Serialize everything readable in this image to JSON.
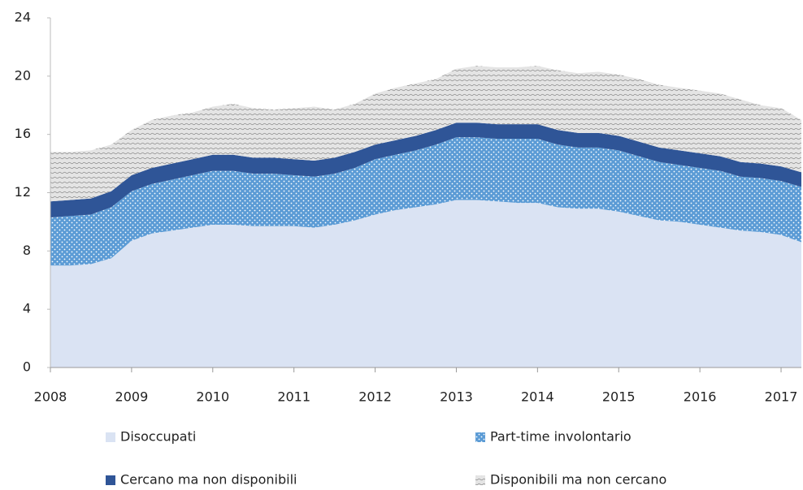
{
  "chart_data": {
    "type": "stacked-area",
    "categories": [
      "2008",
      null,
      null,
      null,
      "2009",
      null,
      null,
      null,
      "2010",
      null,
      null,
      null,
      "2011",
      null,
      null,
      null,
      "2012",
      null,
      null,
      null,
      "2013",
      null,
      null,
      null,
      "2014",
      null,
      null,
      null,
      "2015",
      null,
      null,
      null,
      "2016",
      null,
      null,
      null,
      "2017",
      null
    ],
    "series": [
      {
        "name": "Disoccupati",
        "color": "#dae3f3",
        "values": [
          7.0,
          7.0,
          7.1,
          7.5,
          8.7,
          9.2,
          9.4,
          9.6,
          9.8,
          9.8,
          9.7,
          9.7,
          9.7,
          9.6,
          9.8,
          10.1,
          10.5,
          10.8,
          11.0,
          11.2,
          11.5,
          11.5,
          11.4,
          11.3,
          11.3,
          11.0,
          10.9,
          10.9,
          10.7,
          10.4,
          10.1,
          10.0,
          9.8,
          9.6,
          9.4,
          9.3,
          9.1,
          8.6
        ]
      },
      {
        "name": "Part-time involontario",
        "color": "#5b9bd5",
        "values": [
          3.3,
          3.4,
          3.4,
          3.5,
          3.4,
          3.4,
          3.5,
          3.6,
          3.7,
          3.7,
          3.6,
          3.6,
          3.5,
          3.5,
          3.5,
          3.6,
          3.8,
          3.8,
          3.9,
          4.1,
          4.3,
          4.3,
          4.3,
          4.4,
          4.4,
          4.3,
          4.2,
          4.2,
          4.2,
          4.1,
          4.0,
          3.9,
          3.9,
          3.9,
          3.7,
          3.7,
          3.7,
          3.8
        ]
      },
      {
        "name": "Cercano ma non disponibili",
        "color": "#2f5597",
        "values": [
          1.1,
          1.1,
          1.1,
          1.1,
          1.1,
          1.1,
          1.1,
          1.1,
          1.1,
          1.1,
          1.1,
          1.1,
          1.1,
          1.1,
          1.1,
          1.1,
          1.0,
          1.0,
          1.0,
          1.0,
          1.0,
          1.0,
          1.0,
          1.0,
          1.0,
          1.0,
          1.0,
          1.0,
          1.0,
          1.0,
          1.0,
          1.0,
          1.0,
          1.0,
          1.0,
          1.0,
          1.0,
          1.0
        ]
      },
      {
        "name": "Disponibili ma non cercano",
        "color": "#e4e4e4",
        "values": [
          3.4,
          3.3,
          3.3,
          3.2,
          3.1,
          3.3,
          3.3,
          3.2,
          3.3,
          3.5,
          3.4,
          3.3,
          3.5,
          3.7,
          3.3,
          3.3,
          3.5,
          3.6,
          3.6,
          3.5,
          3.7,
          3.9,
          3.9,
          3.9,
          4.0,
          4.1,
          4.1,
          4.2,
          4.2,
          4.3,
          4.3,
          4.3,
          4.3,
          4.3,
          4.3,
          4.0,
          4.0,
          3.6
        ]
      }
    ],
    "ylim": [
      0,
      24
    ],
    "yticks": [
      0,
      4,
      8,
      12,
      16,
      20,
      24
    ]
  }
}
